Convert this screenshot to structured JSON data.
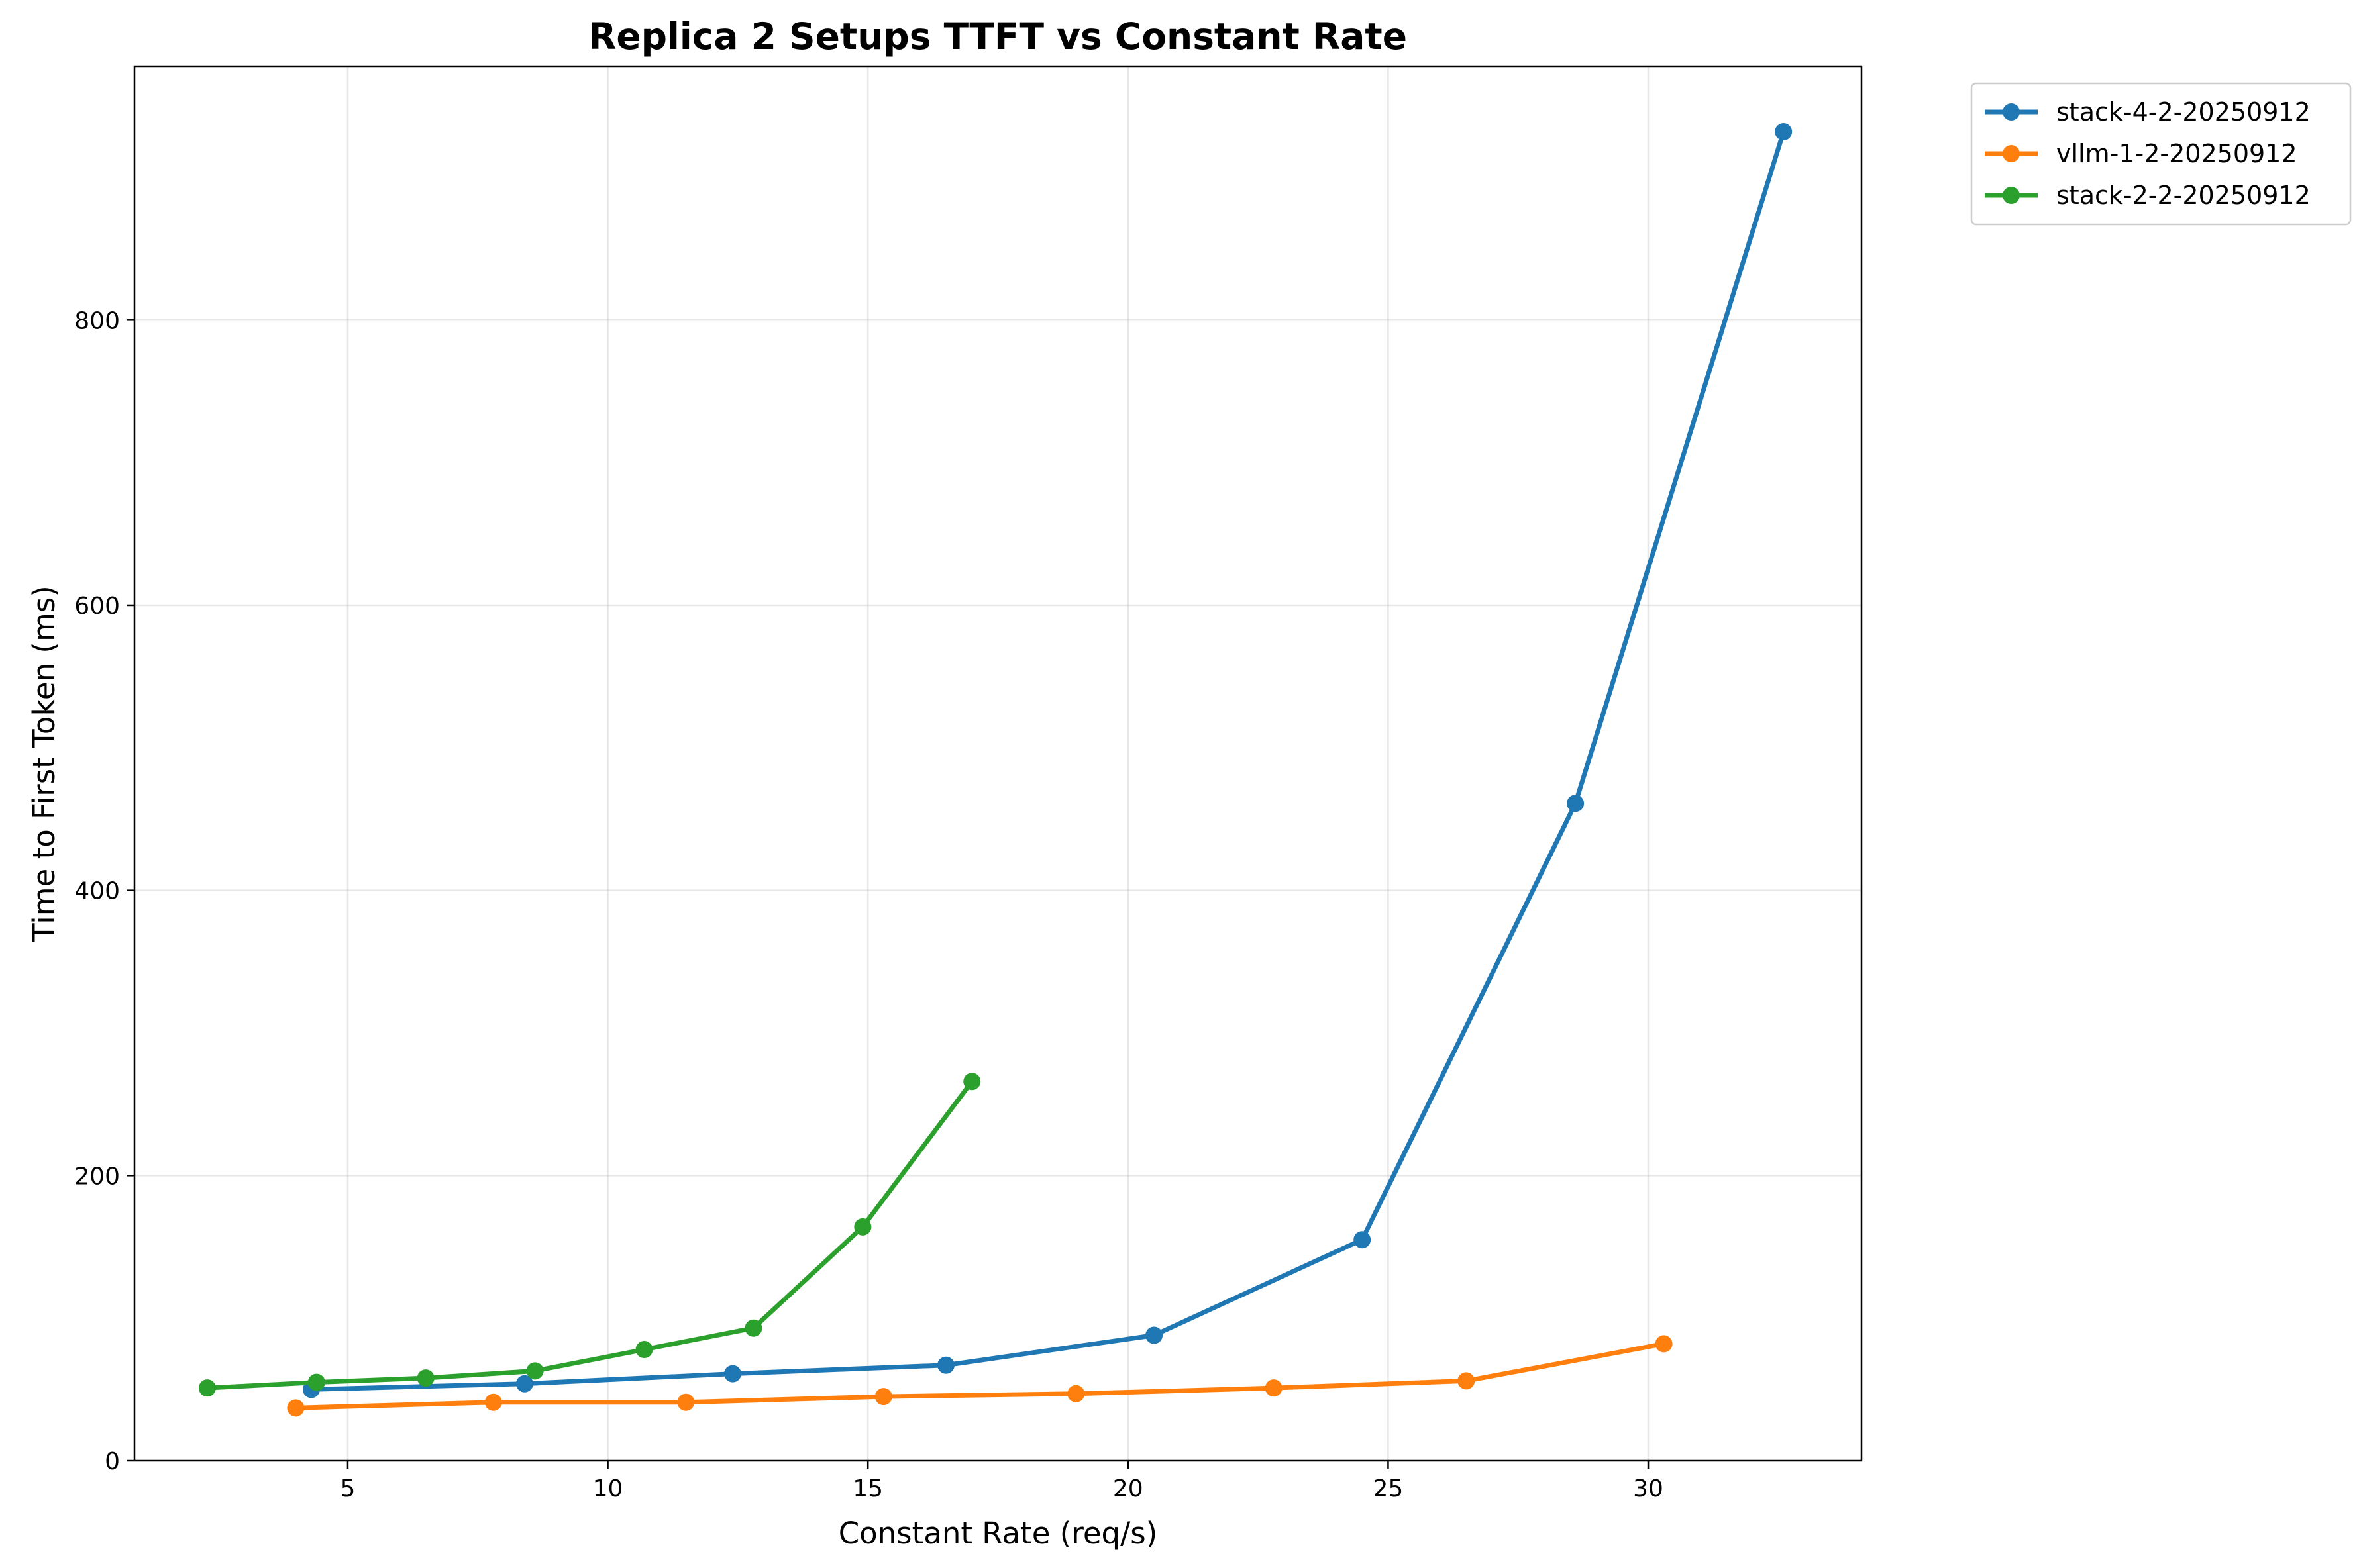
{
  "chart_data": {
    "type": "line",
    "title": "Replica 2 Setups TTFT vs Constant Rate",
    "xlabel": "Constant Rate (req/s)",
    "ylabel": "Time to First Token (ms)",
    "xlim": [
      0.9,
      34.1
    ],
    "ylim": [
      0,
      978
    ],
    "xticks": [
      5,
      10,
      15,
      20,
      25,
      30
    ],
    "yticks": [
      0,
      200,
      400,
      600,
      800
    ],
    "grid": true,
    "legend_position": "outside-top-right",
    "series": [
      {
        "name": "stack-4-2-20250912",
        "color": "#1f77b4",
        "x": [
          4.3,
          8.4,
          12.4,
          16.5,
          20.5,
          24.5,
          28.6,
          32.6
        ],
        "y": [
          50,
          54,
          61,
          67,
          88,
          155,
          461,
          932
        ]
      },
      {
        "name": "vllm-1-2-20250912",
        "color": "#ff7f0e",
        "x": [
          4.0,
          7.8,
          11.5,
          15.3,
          19.0,
          22.8,
          26.5,
          30.3
        ],
        "y": [
          37,
          41,
          41,
          45,
          47,
          51,
          56,
          82
        ]
      },
      {
        "name": "stack-2-2-20250912",
        "color": "#2ca02c",
        "x": [
          2.3,
          4.4,
          6.5,
          8.6,
          10.7,
          12.8,
          14.9,
          17.0
        ],
        "y": [
          51,
          55,
          58,
          63,
          78,
          93,
          164,
          266
        ]
      }
    ]
  }
}
